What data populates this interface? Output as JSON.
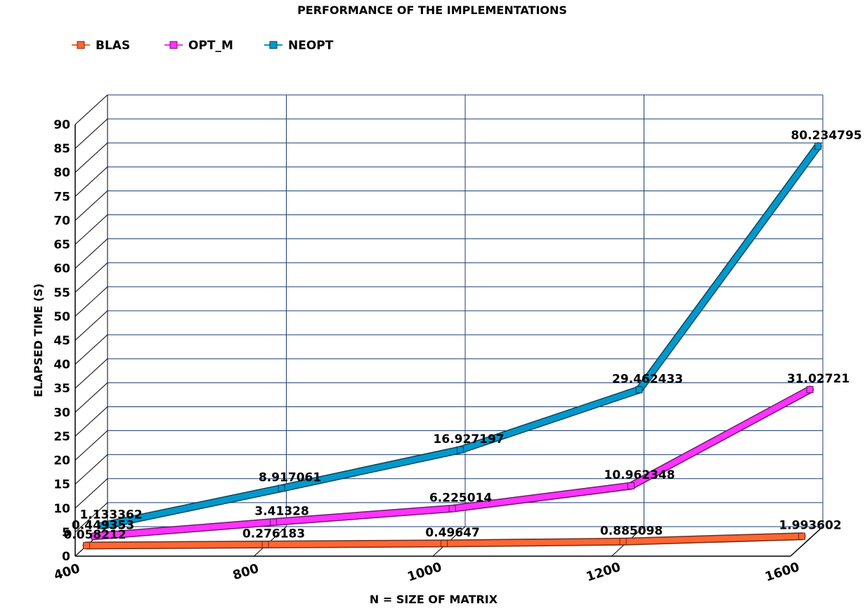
{
  "chart_data": {
    "type": "line",
    "title": "PERFORMANCE OF THE IMPLEMENTATIONS",
    "xlabel": "N = SIZE OF MATRIX",
    "ylabel": "ELAPSED TIME (S)",
    "categories": [
      "400",
      "800",
      "1000",
      "1200",
      "1600"
    ],
    "ylim": [
      0,
      90
    ],
    "yticks": [
      0,
      5,
      10,
      15,
      20,
      25,
      30,
      35,
      40,
      45,
      50,
      55,
      60,
      65,
      70,
      75,
      80,
      85,
      90
    ],
    "grid": true,
    "legend_position": "top-left",
    "series": [
      {
        "name": "BLAS",
        "color": "#ff6633",
        "values": [
          0.058212,
          0.276183,
          0.49647,
          0.885098,
          1.993602
        ],
        "labels": [
          "0.058212",
          "0.276183",
          "0.49647",
          "0.885098",
          "1.993602"
        ]
      },
      {
        "name": "OPT_M",
        "color": "#ff33ff",
        "values": [
          0.449353,
          3.41328,
          6.225014,
          10.962348,
          31.02721
        ],
        "labels": [
          "0.449353",
          "3.41328",
          "6.225014",
          "10.962348",
          "31.02721"
        ]
      },
      {
        "name": "NEOPT",
        "color": "#0099cc",
        "values": [
          1.133362,
          8.917061,
          16.927197,
          29.462433,
          80.234795
        ],
        "labels": [
          "1.133362",
          "8.917061",
          "16.927197",
          "29.462433",
          "80.234795"
        ]
      }
    ]
  }
}
